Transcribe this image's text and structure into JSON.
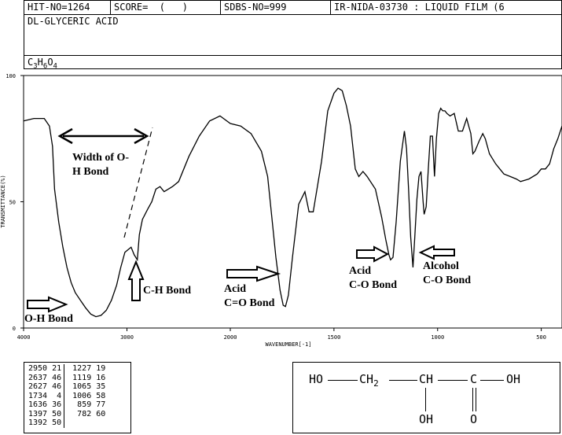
{
  "header": {
    "hit_no": "HIT-NO=1264",
    "score": "SCORE=  (   )",
    "sdbs_no": "SDBS-NO=999",
    "ir_id": "IR-NIDA-03730 : LIQUID FILM (6",
    "compound_name": "DL-GLYCERIC ACID",
    "formula_parts": [
      "C",
      "3",
      "H",
      "6",
      "O",
      "4"
    ]
  },
  "chart_data": {
    "type": "line",
    "title": "",
    "xlabel": "WAVENUMBER[-1]",
    "ylabel": "TRANSMITTANCE(%)",
    "xlim": [
      4000,
      400
    ],
    "ylim": [
      0,
      100
    ],
    "x_ticks": [
      4000,
      3000,
      2000,
      1500,
      1000,
      500
    ],
    "y_ticks": [
      0,
      50,
      100
    ],
    "grid": false,
    "series": [
      {
        "x": [
          4000,
          3900,
          3800,
          3750,
          3720,
          3700,
          3660,
          3620,
          3580,
          3540,
          3500,
          3450,
          3400,
          3350,
          3300,
          3250,
          3200,
          3150,
          3100,
          3060,
          3020,
          2990,
          2960,
          2930,
          2900,
          2880,
          2850,
          2800,
          2760,
          2720,
          2680,
          2640,
          2600,
          2560,
          2500,
          2400,
          2300,
          2200,
          2100,
          2000,
          1950,
          1900,
          1850,
          1820,
          1800,
          1780,
          1760,
          1745,
          1734,
          1720,
          1700,
          1670,
          1640,
          1620,
          1600,
          1560,
          1530,
          1500,
          1480,
          1460,
          1440,
          1420,
          1397,
          1380,
          1360,
          1340,
          1300,
          1270,
          1250,
          1235,
          1227,
          1215,
          1200,
          1180,
          1160,
          1150,
          1140,
          1130,
          1119,
          1110,
          1100,
          1090,
          1080,
          1070,
          1065,
          1055,
          1045,
          1035,
          1025,
          1015,
          1006,
          995,
          985,
          975,
          965,
          955,
          940,
          920,
          900,
          880,
          860,
          850,
          840,
          830,
          820,
          800,
          782,
          770,
          750,
          720,
          700,
          680,
          650,
          620,
          600,
          560,
          520,
          500,
          480,
          460,
          440,
          420,
          400
        ],
        "y": [
          82,
          83,
          83,
          80,
          72,
          55,
          42,
          32,
          24,
          18,
          14,
          11,
          8,
          5.5,
          4.5,
          5,
          7,
          11,
          17,
          24,
          30,
          31,
          32,
          29,
          27,
          37,
          43,
          47,
          50,
          55,
          56,
          54,
          55,
          56,
          58,
          68,
          76,
          82,
          84,
          81,
          80,
          77,
          70,
          60,
          44,
          28,
          15,
          9,
          8.5,
          13,
          28,
          49,
          54,
          46,
          46,
          66,
          86,
          93,
          95,
          94,
          88,
          80,
          63,
          60,
          62,
          60,
          55,
          44,
          35,
          29,
          27,
          28,
          42,
          66,
          78,
          71,
          55,
          36,
          24,
          36,
          51,
          60,
          62,
          50,
          45,
          48,
          63,
          76,
          76,
          60,
          75,
          85,
          87,
          86,
          86,
          85,
          84,
          85,
          78,
          78,
          83,
          80,
          77,
          69,
          70,
          74,
          77,
          75,
          69,
          65,
          63,
          61,
          60,
          59,
          58,
          59,
          61,
          63,
          63,
          65,
          71,
          75,
          80
        ]
      }
    ],
    "peaks_table": [
      [
        "2950",
        "21",
        "1227",
        "19"
      ],
      [
        "2637",
        "46",
        "1119",
        "16"
      ],
      [
        "2627",
        "46",
        "1065",
        "35"
      ],
      [
        "1734",
        "4",
        "1006",
        "58"
      ],
      [
        "1636",
        "36",
        "859",
        "77"
      ],
      [
        "1397",
        "50",
        "782",
        "60"
      ],
      [
        "1392",
        "50",
        "",
        ""
      ]
    ],
    "annotations": {
      "width_oh": "Width of O-H Bond",
      "oh_bond": "O-H Bond",
      "ch_bond": "C-H Bond",
      "acid_co_double": [
        "Acid",
        "C=O Bond"
      ],
      "acid_co": [
        "Acid",
        "C-O Bond"
      ],
      "alcohol_co": [
        "Alcohol",
        "C-O Bond"
      ]
    }
  },
  "structure": {
    "top": [
      "HO",
      "CH",
      "2",
      "CH",
      "C",
      "OH"
    ],
    "bottom": [
      "OH",
      "O"
    ]
  }
}
